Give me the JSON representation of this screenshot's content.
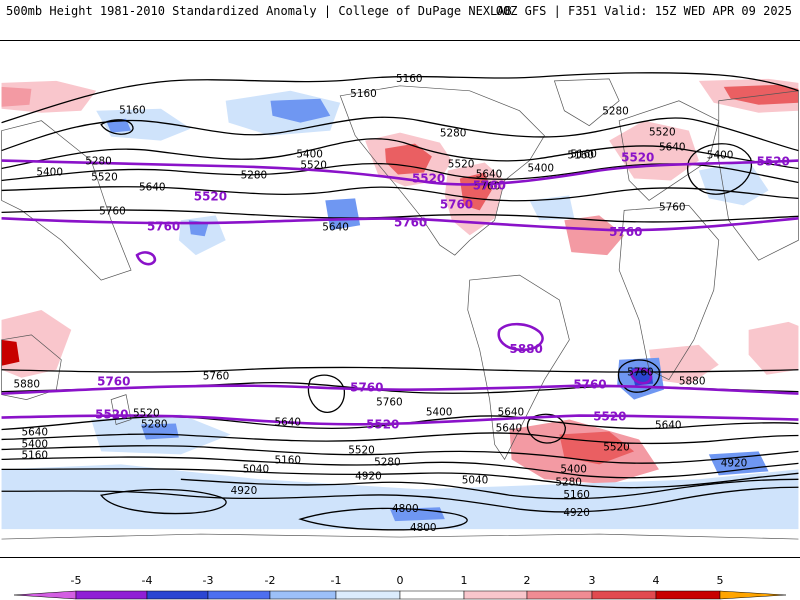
{
  "header": {
    "left": "500mb Height 1981-2010 Standardized Anomaly | College of DuPage NEXLAB",
    "right": "00Z GFS | F351 Valid: 15Z WED APR 09 2025"
  },
  "colors": {
    "pos1": "#f9c6cc",
    "pos2": "#f39aa3",
    "pos3": "#ea5f62",
    "pos4": "#c80000",
    "pos5": "#ffa500",
    "neg1": "#cfe3fb",
    "neg2": "#6f97f2",
    "neg3": "#2b46d2",
    "neg4": "#7a0ac8",
    "neg5": "#d35fe2",
    "contour": "#000000",
    "ref": "#8a12c9"
  },
  "contour_labels": [
    {
      "text": "5160"
    },
    {
      "text": "5160"
    },
    {
      "text": "5160"
    },
    {
      "text": "5160"
    },
    {
      "text": "5280"
    },
    {
      "text": "5400"
    },
    {
      "text": "5520"
    },
    {
      "text": "5640"
    },
    {
      "text": "5760"
    },
    {
      "text": "5400"
    },
    {
      "text": "5520"
    },
    {
      "text": "5280"
    },
    {
      "text": "5640"
    },
    {
      "text": "5280"
    },
    {
      "text": "5520"
    },
    {
      "text": "5640"
    },
    {
      "text": "5760"
    },
    {
      "text": "5400"
    },
    {
      "text": "5160"
    },
    {
      "text": "5280"
    },
    {
      "text": "5520"
    },
    {
      "text": "5640"
    },
    {
      "text": "5400"
    },
    {
      "text": "5760"
    },
    {
      "text": "5880"
    },
    {
      "text": "5760"
    },
    {
      "text": "5520"
    },
    {
      "text": "5280"
    },
    {
      "text": "5640"
    },
    {
      "text": "5400"
    },
    {
      "text": "5160"
    },
    {
      "text": "5040"
    },
    {
      "text": "4920"
    },
    {
      "text": "5760"
    },
    {
      "text": "5640"
    },
    {
      "text": "5520"
    },
    {
      "text": "5160"
    },
    {
      "text": "5280"
    },
    {
      "text": "4920"
    },
    {
      "text": "5400"
    },
    {
      "text": "5640"
    },
    {
      "text": "5040"
    },
    {
      "text": "5760"
    },
    {
      "text": "5400"
    },
    {
      "text": "5280"
    },
    {
      "text": "5160"
    },
    {
      "text": "5520"
    },
    {
      "text": "4920"
    },
    {
      "text": "5880"
    },
    {
      "text": "5640"
    },
    {
      "text": "4920"
    },
    {
      "text": "4800"
    },
    {
      "text": "4800"
    },
    {
      "text": "5640"
    }
  ],
  "reference_labels": [
    {
      "text": "5520"
    },
    {
      "text": "5760"
    },
    {
      "text": "5520"
    },
    {
      "text": "5760"
    },
    {
      "text": "5520"
    },
    {
      "text": "5760"
    },
    {
      "text": "5520"
    },
    {
      "text": "5760"
    },
    {
      "text": "5880"
    },
    {
      "text": "5760"
    },
    {
      "text": "5760"
    },
    {
      "text": "5760"
    },
    {
      "text": "5520"
    },
    {
      "text": "5520"
    },
    {
      "text": "5520"
    },
    {
      "text": "5760"
    }
  ],
  "colorbar": {
    "ticks": [
      "-5",
      "-4",
      "-3",
      "-2",
      "-1",
      "0",
      "1",
      "2",
      "3",
      "4",
      "5"
    ],
    "range": [
      -5,
      5
    ]
  }
}
